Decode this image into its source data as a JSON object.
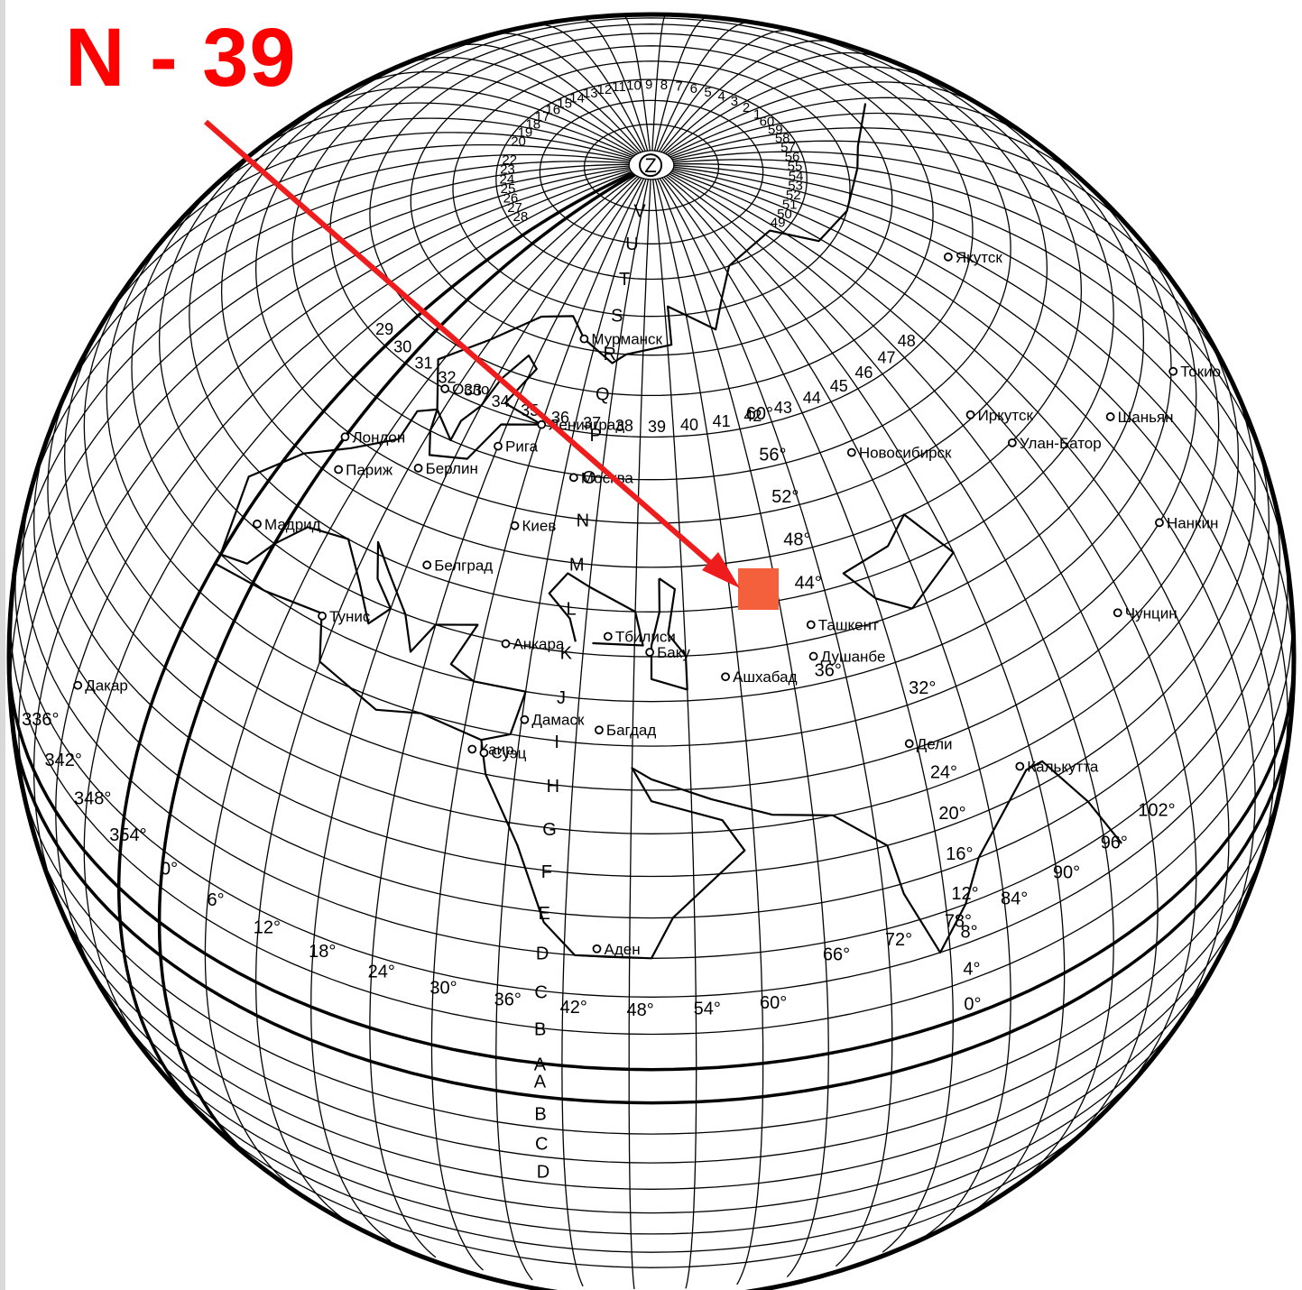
{
  "title": "N - 39",
  "colors": {
    "arrow": "#ee1c1c",
    "highlight": "#f4603c",
    "title": "#ff0000",
    "ink": "#000000"
  },
  "poles": {
    "north": "Z"
  },
  "zone_letters_north": [
    "V",
    "U",
    "T",
    "S",
    "R",
    "Q",
    "P",
    "O",
    "N",
    "M",
    "L",
    "K",
    "J",
    "I",
    "H",
    "G",
    "F",
    "E",
    "D",
    "C",
    "B",
    "A"
  ],
  "zone_letters_south": [
    "A",
    "B",
    "C",
    "D"
  ],
  "column_numbers_arctic": [
    "1",
    "2",
    "3",
    "4",
    "5",
    "6",
    "7",
    "8",
    "9",
    "10",
    "11",
    "12",
    "13",
    "14",
    "15",
    "16",
    "17",
    "18",
    "19",
    "20",
    "22",
    "23",
    "24",
    "25",
    "26",
    "27",
    "28",
    "49",
    "50",
    "51",
    "52",
    "53",
    "54",
    "55",
    "56",
    "57",
    "58",
    "59",
    "60"
  ],
  "column_numbers_row": [
    "29",
    "30",
    "31",
    "32",
    "33",
    "34",
    "35",
    "36",
    "37",
    "38",
    "39",
    "40",
    "41",
    "42",
    "43",
    "44",
    "45",
    "46",
    "47",
    "48"
  ],
  "latitudes": [
    "60°",
    "56°",
    "52°",
    "48°",
    "44°",
    "36°",
    "32°",
    "24°",
    "20°",
    "16°",
    "12°",
    "8°",
    "4°",
    "0°"
  ],
  "longitudes": [
    "336°",
    "342°",
    "348°",
    "354°",
    "0°",
    "6°",
    "12°",
    "18°",
    "24°",
    "30°",
    "36°",
    "42°",
    "48°",
    "54°",
    "60°",
    "66°",
    "72°",
    "78°",
    "84°",
    "90°",
    "96°",
    "102°"
  ],
  "cities": [
    "Мурманск",
    "Осло",
    "Ленинград",
    "Рига",
    "Москва",
    "Лондон",
    "Париж",
    "Берлин",
    "Киев",
    "Мадрид",
    "Белград",
    "Тбилиси",
    "Баку",
    "Тунис",
    "Анкара",
    "Ташкент",
    "Душанбе",
    "Ашхабад",
    "Багдад",
    "Дамаск",
    "Каир",
    "Суэц",
    "Аден",
    "Дакар",
    "Якутск",
    "Новосибирск",
    "Иркутск",
    "Улан-Батор",
    "Токио",
    "Шаньян",
    "Нанкин",
    "Чунцин",
    "Дели",
    "Калькутта"
  ],
  "highlight_sheet": "N-39"
}
